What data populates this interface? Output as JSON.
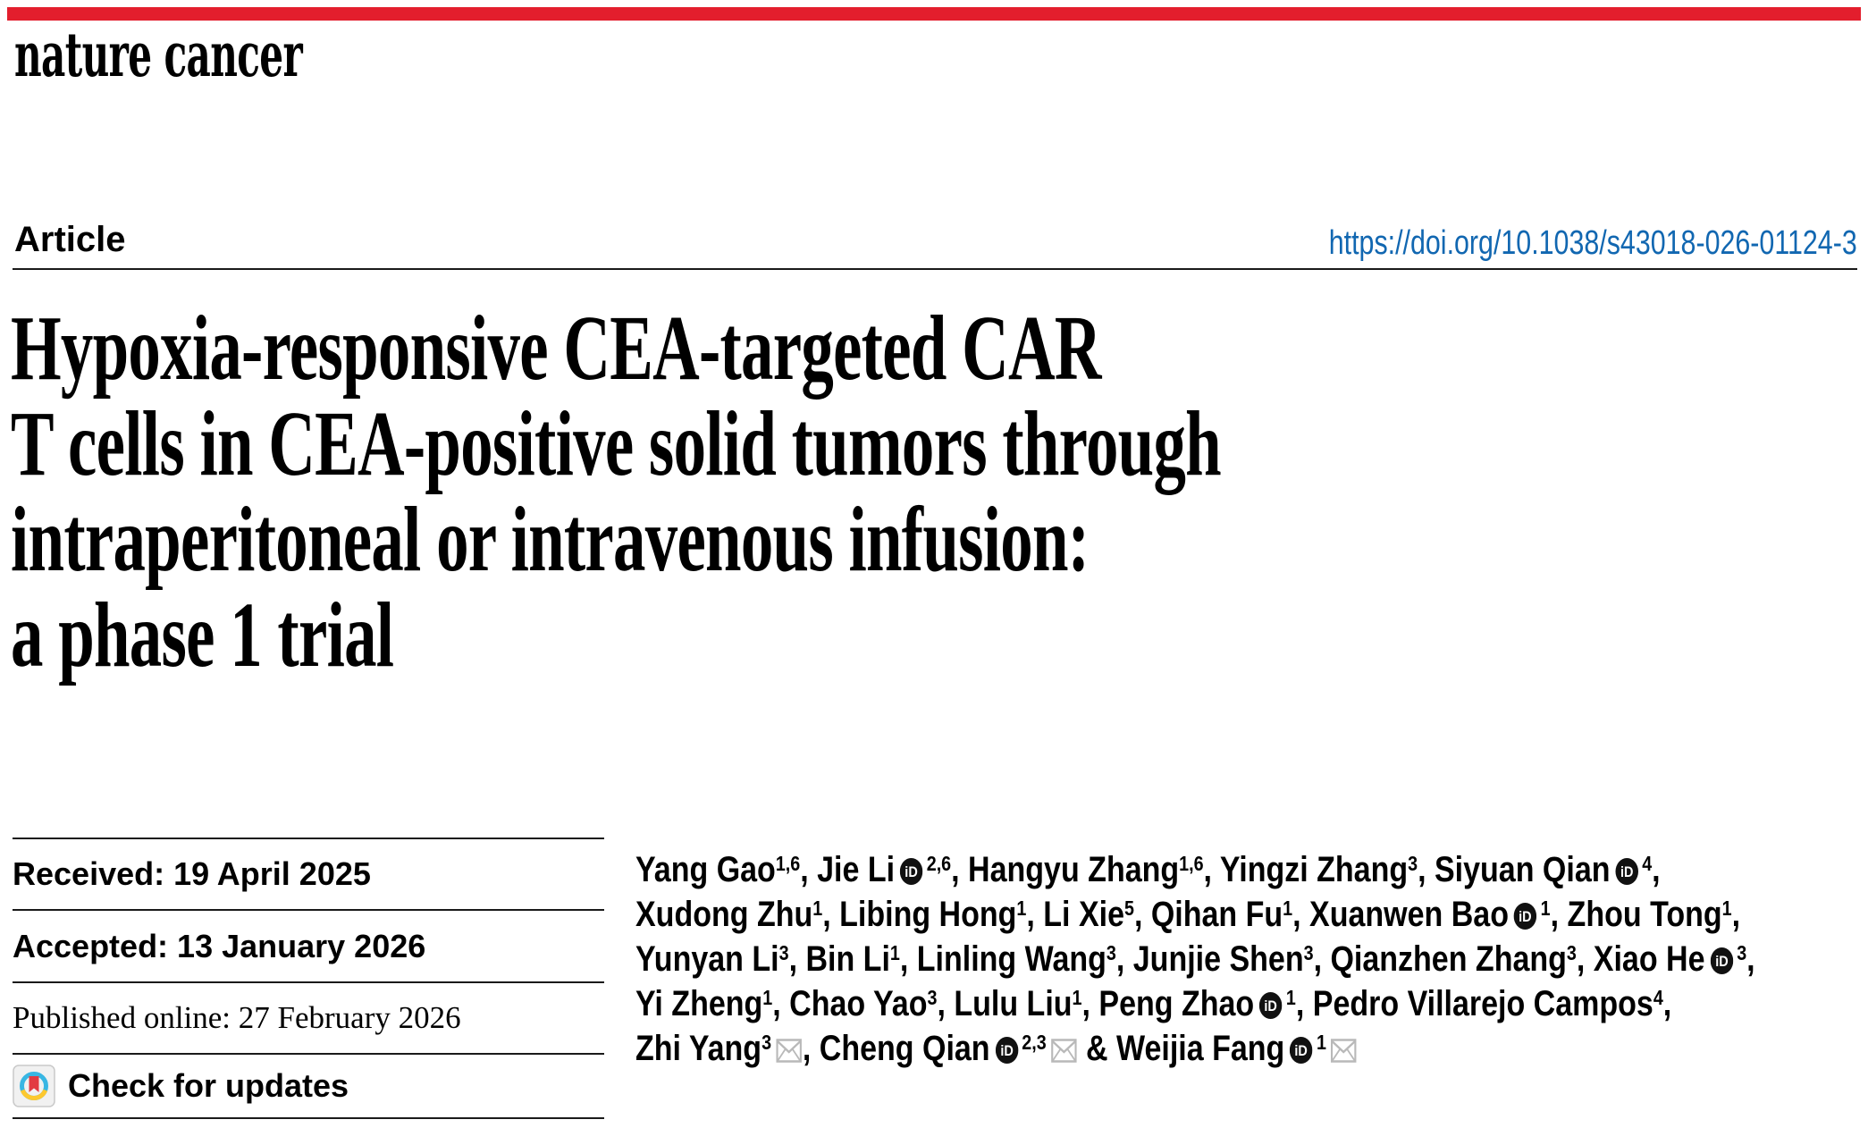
{
  "colors": {
    "brand_red": "#e31e2d",
    "link_blue": "#1167b1",
    "crossmark_teal": "#38b6e3",
    "crossmark_yellow": "#fdc82f",
    "crossmark_red": "#e23a42"
  },
  "masthead": {
    "journal_name": "nature cancer"
  },
  "header": {
    "section_label": "Article",
    "doi": "https://doi.org/10.1038/s43018-026-01124-3"
  },
  "title": {
    "lines": [
      "Hypoxia-responsive CEA-targeted CAR",
      "T cells in CEA-positive solid tumors through",
      "intraperitoneal or intravenous infusion:",
      "a phase 1 trial"
    ]
  },
  "info_panel": {
    "received": "Received: 19 April 2025",
    "accepted": "Accepted: 13 January 2026",
    "published": "Published online: 27 February 2026",
    "check_updates_label": "Check for updates"
  },
  "icons": {
    "orcid": "orcid-icon",
    "email": "email-icon",
    "crossmark": "crossmark-icon"
  },
  "authors": {
    "list": [
      {
        "name": "Yang Gao",
        "sup": "1,6",
        "orcid": false,
        "email": false,
        "br": false
      },
      {
        "name": "Jie Li",
        "sup": "2,6",
        "orcid": true,
        "email": false,
        "br": false
      },
      {
        "name": "Hangyu Zhang",
        "sup": "1,6",
        "orcid": false,
        "email": false,
        "br": false
      },
      {
        "name": "Yingzi Zhang",
        "sup": "3",
        "orcid": false,
        "email": false,
        "br": false
      },
      {
        "name": "Siyuan Qian",
        "sup": "4",
        "orcid": true,
        "email": false,
        "br": true
      },
      {
        "name": "Xudong Zhu",
        "sup": "1",
        "orcid": false,
        "email": false,
        "br": false
      },
      {
        "name": "Libing Hong",
        "sup": "1",
        "orcid": false,
        "email": false,
        "br": false
      },
      {
        "name": "Li Xie",
        "sup": "5",
        "orcid": false,
        "email": false,
        "br": false
      },
      {
        "name": "Qihan Fu",
        "sup": "1",
        "orcid": false,
        "email": false,
        "br": false
      },
      {
        "name": "Xuanwen Bao",
        "sup": "1",
        "orcid": true,
        "email": false,
        "br": false
      },
      {
        "name": "Zhou Tong",
        "sup": "1",
        "orcid": false,
        "email": false,
        "br": true
      },
      {
        "name": "Yunyan Li",
        "sup": "3",
        "orcid": false,
        "email": false,
        "br": false
      },
      {
        "name": "Bin Li",
        "sup": "1",
        "orcid": false,
        "email": false,
        "br": false
      },
      {
        "name": "Linling Wang",
        "sup": "3",
        "orcid": false,
        "email": false,
        "br": false
      },
      {
        "name": "Junjie Shen",
        "sup": "3",
        "orcid": false,
        "email": false,
        "br": false
      },
      {
        "name": "Qianzhen Zhang",
        "sup": "3",
        "orcid": false,
        "email": false,
        "br": false
      },
      {
        "name": "Xiao He",
        "sup": "3",
        "orcid": true,
        "email": false,
        "br": true
      },
      {
        "name": "Yi Zheng",
        "sup": "1",
        "orcid": false,
        "email": false,
        "br": false
      },
      {
        "name": "Chao Yao",
        "sup": "3",
        "orcid": false,
        "email": false,
        "br": false
      },
      {
        "name": "Lulu Liu",
        "sup": "1",
        "orcid": false,
        "email": false,
        "br": false
      },
      {
        "name": "Peng Zhao",
        "sup": "1",
        "orcid": true,
        "email": false,
        "br": false
      },
      {
        "name": "Pedro Villarejo Campos",
        "sup": "4",
        "orcid": false,
        "email": false,
        "br": true
      },
      {
        "name": "Zhi Yang",
        "sup": "3",
        "orcid": false,
        "email": true,
        "br": false
      },
      {
        "name": "Cheng Qian",
        "sup": "2,3",
        "orcid": true,
        "email": true,
        "br": false
      },
      {
        "name": "Weijia Fang",
        "sup": "1",
        "orcid": true,
        "email": true,
        "br": false
      }
    ]
  }
}
